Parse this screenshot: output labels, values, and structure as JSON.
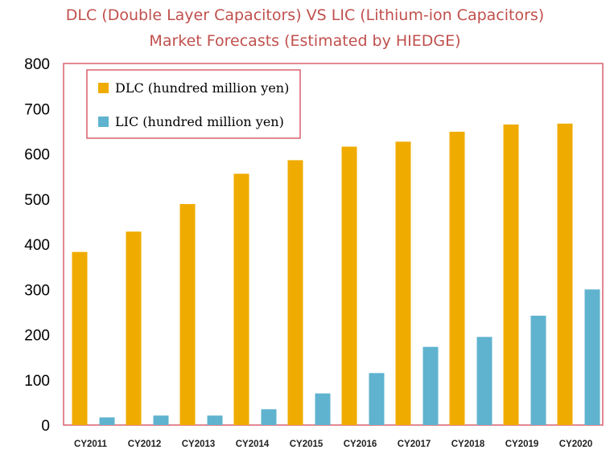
{
  "title_line1": "DLC (Double Layer Capacitors)  VS  LIC (Lithium-ion Capacitors)",
  "title_line2": "Market  Forecasts   (Estimated by HIEDGE)",
  "chart_data": {
    "type": "bar",
    "categories": [
      "CY2011",
      "CY2012",
      "CY2013",
      "CY2014",
      "CY2015",
      "CY2016",
      "CY2017",
      "CY2018",
      "CY2019",
      "CY2020"
    ],
    "series": [
      {
        "name": "DLC (hundred million yen)",
        "color": "#f0ab00",
        "values": [
          383,
          428,
          489,
          556,
          586,
          616,
          627,
          649,
          665,
          667
        ]
      },
      {
        "name": "LIC (hundred million yen)",
        "color": "#5fb3cf",
        "values": [
          17,
          21,
          21,
          35,
          70,
          115,
          173,
          195,
          242,
          300
        ]
      }
    ],
    "ylim": [
      0,
      800
    ],
    "yticks": [
      "0",
      "100",
      "200",
      "300",
      "400",
      "500",
      "600",
      "700",
      "800"
    ],
    "legend_position": "top-left",
    "frame_color": "#d9606e",
    "xlabel": "",
    "ylabel": ""
  }
}
